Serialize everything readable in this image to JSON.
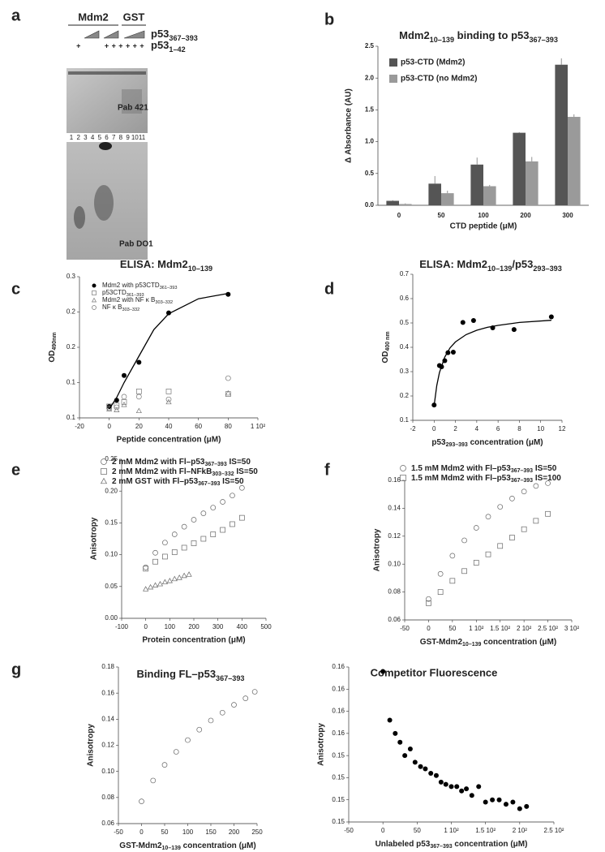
{
  "figure": {
    "panel_labels": [
      "a",
      "b",
      "c",
      "d",
      "e",
      "f",
      "g"
    ],
    "gel": {
      "groups": [
        "Mdm2",
        "GST"
      ],
      "rows": [
        [
          "p53",
          "367–393"
        ],
        [
          "p53",
          "1–42"
        ]
      ],
      "plus": [
        "+",
        "+",
        "+",
        "+",
        "+",
        "+",
        "+"
      ],
      "lanes": [
        "1",
        "2",
        "3",
        "4",
        "5",
        "6",
        "7",
        "8",
        "9",
        "10",
        "11"
      ],
      "antibodies": [
        "Pab 421",
        "Pab DO1"
      ]
    }
  },
  "chart_data": [
    {
      "type": "bar",
      "title": [
        "Mdm2",
        "10–139",
        " binding to p53",
        "367–393"
      ],
      "xlabel": "CTD peptide  (μM)",
      "ylabel": "Δ Absorbance (AU)",
      "categories": [
        "0",
        "50",
        "100",
        "200",
        "300"
      ],
      "ylim": [
        0,
        2.5
      ],
      "yticks": [
        {
          "value": 0,
          "label": "0.0"
        },
        0.5,
        {
          "value": 1,
          "label": "1.0"
        },
        1.5,
        {
          "value": 2,
          "label": "2.0"
        },
        2.5
      ],
      "series": [
        {
          "name": "p53-CTD (Mdm2)",
          "color": "#555555",
          "values": [
            0.07,
            0.34,
            0.64,
            1.14,
            2.21
          ],
          "errors": [
            0.01,
            0.12,
            0.11,
            0.01,
            0.1
          ]
        },
        {
          "name": "p53-CTD (no Mdm2)",
          "color": "#9a9a9a",
          "values": [
            0.02,
            0.19,
            0.3,
            0.69,
            1.39
          ],
          "errors": [
            0.01,
            0.04,
            0.02,
            0.07,
            0.04
          ]
        }
      ]
    },
    {
      "type": "scatter",
      "title": [
        "ELISA: Mdm2",
        "10–139"
      ],
      "ylabel": [
        "OD",
        "490nm"
      ],
      "xlabel": "Peptide concentration (μM)",
      "xlim": [
        -20,
        100
      ],
      "xticks": [
        -20,
        0,
        20,
        40,
        60,
        80,
        {
          "value": 100,
          "label": "1 10²"
        }
      ],
      "ylim": [
        0.1,
        0.26
      ],
      "yticks": [
        {
          "value": 0.1,
          "label": "0.1"
        },
        {
          "value": 0.14,
          "label": "0.1"
        },
        {
          "value": 0.18,
          "label": "0.2"
        },
        {
          "value": 0.22,
          "label": "0.2"
        },
        {
          "value": 0.26,
          "label": "0.3"
        }
      ],
      "series": [
        {
          "name": [
            "Mdm2 with p53CTD",
            "361–393"
          ],
          "marker": "filled-circle",
          "color": "#000000",
          "x": [
            0,
            5,
            10,
            20,
            40,
            80
          ],
          "values": [
            0.113,
            0.12,
            0.148,
            0.163,
            0.219,
            0.24
          ]
        },
        {
          "name": [
            "p53CTD",
            "361–393"
          ],
          "marker": "square",
          "color": "#777777",
          "x": [
            0,
            5,
            10,
            20,
            40,
            80
          ],
          "values": [
            0.113,
            0.114,
            0.118,
            0.13,
            0.13,
            0.127
          ]
        },
        {
          "name": [
            "Mdm2 with NF κ B",
            "303–332"
          ],
          "marker": "triangle",
          "color": "#777777",
          "x": [
            0,
            5,
            10,
            20,
            40,
            80
          ],
          "values": [
            0.11,
            0.109,
            0.115,
            0.108,
            0.118,
            0.128
          ]
        },
        {
          "name": [
            "NF κ B",
            "303–332"
          ],
          "marker": "circle",
          "color": "#777777",
          "x": [
            0,
            5,
            10,
            20,
            40,
            80
          ],
          "values": [
            0.111,
            0.112,
            0.124,
            0.124,
            0.121,
            0.145
          ]
        },
        {
          "marker": "line",
          "color": "#000000",
          "x": [
            0,
            5,
            10,
            20,
            30,
            40,
            60,
            80
          ],
          "values": [
            0.11,
            0.123,
            0.14,
            0.17,
            0.2,
            0.218,
            0.235,
            0.241
          ]
        }
      ]
    },
    {
      "type": "scatter",
      "title": [
        "ELISA: Mdm2",
        "10–139",
        "/p53",
        "293–393"
      ],
      "ylabel": [
        "OD",
        "400 nm"
      ],
      "xlabel": [
        "p53",
        "293–393",
        " concentration (μM)"
      ],
      "xlim": [
        -2,
        12
      ],
      "xticks": [
        -2,
        0,
        2,
        4,
        6,
        8,
        10,
        12
      ],
      "ylim": [
        0.1,
        0.7
      ],
      "yticks": [
        0.1,
        0.2,
        0.3,
        0.4,
        0.5,
        0.6,
        0.7
      ],
      "series": [
        {
          "marker": "filled-circle",
          "color": "#000000",
          "x": [
            0,
            0.5,
            0.7,
            1,
            1.3,
            1.8,
            2.7,
            3.7,
            5.5,
            7.5,
            11
          ],
          "values": [
            0.163,
            0.325,
            0.32,
            0.345,
            0.378,
            0.38,
            0.502,
            0.51,
            0.48,
            0.473,
            0.525
          ]
        },
        {
          "marker": "line",
          "color": "#000000",
          "x": [
            0,
            0.25,
            0.5,
            1,
            1.5,
            2,
            3,
            4,
            5,
            6,
            8,
            11
          ],
          "values": [
            0.16,
            0.243,
            0.296,
            0.36,
            0.398,
            0.422,
            0.452,
            0.47,
            0.482,
            0.49,
            0.502,
            0.511
          ]
        }
      ]
    },
    {
      "type": "scatter",
      "ylabel": "Anisotropy",
      "xlabel": "Protein concentration (μM)",
      "xlim": [
        -100,
        500
      ],
      "xticks": [
        -100,
        0,
        100,
        200,
        300,
        400,
        500
      ],
      "ylim": [
        0,
        0.25
      ],
      "yticks": [
        {
          "value": 0,
          "label": "0.00"
        },
        0.05,
        {
          "value": 0.1,
          "label": "0.10"
        },
        0.15,
        {
          "value": 0.2,
          "label": "0.20"
        },
        0.25
      ],
      "series": [
        {
          "name": [
            "2 mM Mdm2 with Fl–p53",
            "367–393",
            " IS=50"
          ],
          "marker": "circle",
          "color": "#666666",
          "x": [
            0,
            40,
            80,
            120,
            160,
            200,
            240,
            280,
            320,
            360,
            400
          ],
          "values": [
            0.08,
            0.103,
            0.119,
            0.132,
            0.144,
            0.155,
            0.165,
            0.174,
            0.183,
            0.193,
            0.205
          ]
        },
        {
          "name": [
            "2 mM Mdm2 with Fl–NFkB",
            "303–332",
            " IS=50"
          ],
          "marker": "square",
          "color": "#666666",
          "x": [
            0,
            40,
            80,
            120,
            160,
            200,
            240,
            280,
            320,
            360,
            400
          ],
          "values": [
            0.078,
            0.089,
            0.097,
            0.104,
            0.111,
            0.118,
            0.125,
            0.132,
            0.139,
            0.148,
            0.158
          ]
        },
        {
          "name": [
            "2 mM GST with Fl–p53",
            "367–393",
            " IS=50"
          ],
          "marker": "triangle",
          "color": "#666666",
          "x": [
            0,
            20,
            40,
            60,
            80,
            100,
            120,
            140,
            160,
            180
          ],
          "values": [
            0.046,
            0.049,
            0.052,
            0.054,
            0.057,
            0.059,
            0.062,
            0.064,
            0.067,
            0.069
          ]
        }
      ]
    },
    {
      "type": "scatter",
      "ylabel": "Anisotropy",
      "xlabel": [
        "GST-Mdm2",
        "10–139",
        "  concentration (μM)"
      ],
      "xlim": [
        -50,
        300
      ],
      "xticks": [
        -50,
        0,
        50,
        {
          "value": 100,
          "label": "1 10²"
        },
        {
          "value": 150,
          "label": "1.5 10²"
        },
        {
          "value": 200,
          "label": "2 10²"
        },
        {
          "value": 250,
          "label": "2.5 10²"
        },
        {
          "value": 300,
          "label": "3 10²"
        }
      ],
      "ylim": [
        0.06,
        0.16
      ],
      "yticks": [
        0.06,
        0.08,
        {
          "value": 0.1,
          "label": "0.10"
        },
        0.12,
        0.14,
        0.16
      ],
      "series": [
        {
          "name": [
            "1.5 mM Mdm2 with Fl–p53",
            "367–393",
            " IS=50"
          ],
          "marker": "circle",
          "color": "#666666",
          "x": [
            0,
            25,
            50,
            75,
            100,
            125,
            150,
            175,
            200,
            225,
            250
          ],
          "values": [
            0.075,
            0.093,
            0.106,
            0.117,
            0.126,
            0.134,
            0.141,
            0.147,
            0.152,
            0.156,
            0.158
          ]
        },
        {
          "name": [
            "1.5 mM Mdm2 with Fl–p53",
            "367–393",
            " IS=100"
          ],
          "marker": "square",
          "color": "#666666",
          "x": [
            0,
            25,
            50,
            75,
            100,
            125,
            150,
            175,
            200,
            225,
            250
          ],
          "values": [
            0.072,
            0.08,
            0.088,
            0.095,
            0.101,
            0.107,
            0.113,
            0.119,
            0.125,
            0.131,
            0.136
          ]
        }
      ]
    },
    {
      "type": "scatter",
      "title": [
        "Binding FL–p53",
        "367–393"
      ],
      "ylabel": "Anisotropy",
      "xlabel": [
        "GST-Mdm2",
        "10–139",
        " concentration (μM)"
      ],
      "xlim": [
        -50,
        250
      ],
      "xticks": [
        -50,
        0,
        50,
        100,
        150,
        200,
        250
      ],
      "ylim": [
        0.06,
        0.18
      ],
      "yticks": [
        0.06,
        0.08,
        {
          "value": 0.1,
          "label": "0.10"
        },
        0.12,
        0.14,
        0.16,
        0.18
      ],
      "series": [
        {
          "marker": "circle",
          "color": "#666666",
          "x": [
            0,
            25,
            50,
            75,
            100,
            125,
            150,
            175,
            200,
            225,
            245
          ],
          "values": [
            0.077,
            0.093,
            0.105,
            0.115,
            0.124,
            0.132,
            0.139,
            0.145,
            0.151,
            0.156,
            0.161
          ]
        }
      ]
    },
    {
      "type": "scatter",
      "title": "Competitor  Fluorescence",
      "ylabel": "Anisotropy",
      "xlabel": [
        "Unlabeled p53",
        "367–393",
        " concentration (μM)"
      ],
      "xlim": [
        -50,
        250
      ],
      "xticks": [
        -50,
        0,
        50,
        {
          "value": 100,
          "label": "1 10²"
        },
        {
          "value": 150,
          "label": "1.5 10²"
        },
        {
          "value": 200,
          "label": "2 10²"
        },
        {
          "value": 250,
          "label": "2.5 10²"
        }
      ],
      "ylim": [
        0.1515,
        0.1585
      ],
      "yticks": [
        {
          "value": 0.1515,
          "label": "0.15"
        },
        {
          "value": 0.1525,
          "label": "0.15"
        },
        {
          "value": 0.1535,
          "label": "0.15"
        },
        {
          "value": 0.1545,
          "label": "0.15"
        },
        {
          "value": 0.1555,
          "label": "0.16"
        },
        {
          "value": 0.1565,
          "label": "0.16"
        },
        {
          "value": 0.1575,
          "label": "0.16"
        },
        {
          "value": 0.1585,
          "label": "0.16"
        }
      ],
      "series": [
        {
          "marker": "filled-circle",
          "color": "#000000",
          "x": [
            0,
            10,
            18,
            25,
            32,
            40,
            47,
            55,
            62,
            70,
            78,
            85,
            92,
            100,
            108,
            115,
            122,
            130,
            140,
            150,
            160,
            170,
            180,
            190,
            200,
            210
          ],
          "values": [
            0.1583,
            0.1561,
            0.1555,
            0.1551,
            0.1545,
            0.1548,
            0.1542,
            0.154,
            0.1539,
            0.1537,
            0.1536,
            0.1533,
            0.1532,
            0.1531,
            0.1531,
            0.1529,
            0.153,
            0.1527,
            0.1531,
            0.1524,
            0.1525,
            0.1525,
            0.1523,
            0.1524,
            0.1521,
            0.1522
          ]
        }
      ]
    }
  ]
}
